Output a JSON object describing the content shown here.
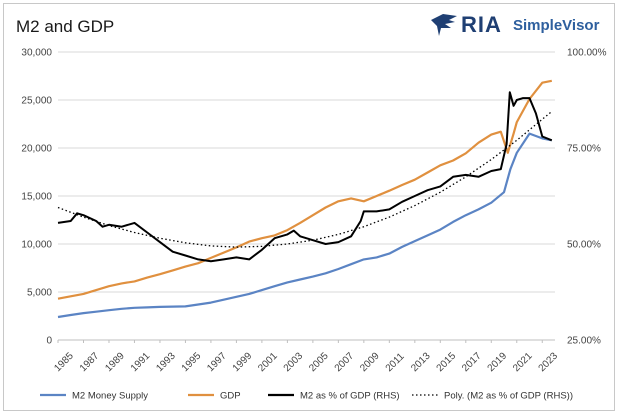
{
  "logo": {
    "brand": "RIA",
    "product": "SimpleVisor"
  },
  "colors": {
    "m2": "#5b84c4",
    "gdp": "#e0903f",
    "ratio": "#000000",
    "trend": "#000000"
  },
  "chart_data": {
    "type": "line",
    "title": "M2 and GDP",
    "x_ticks": [
      "1985",
      "1987",
      "1989",
      "1991",
      "1993",
      "1995",
      "1997",
      "1999",
      "2001",
      "2003",
      "2005",
      "2007",
      "2009",
      "2011",
      "2013",
      "2015",
      "2017",
      "2019",
      "2021",
      "2023"
    ],
    "xlim": [
      1985,
      2024
    ],
    "y_left": {
      "lim": [
        0,
        30000
      ],
      "ticks": [
        "0",
        "5,000",
        "10,000",
        "15,000",
        "20,000",
        "25,000",
        "30,000"
      ]
    },
    "y_right": {
      "lim": [
        0.25,
        1.0
      ],
      "ticks": [
        "25.00%",
        "50.00%",
        "75.00%",
        "100.00%"
      ]
    },
    "legend_position": "bottom",
    "grid": true,
    "series": [
      {
        "name": "M2 Money Supply",
        "axis": "left",
        "style": "solid",
        "x": [
          1985,
          1986,
          1987,
          1988,
          1989,
          1990,
          1991,
          1992,
          1993,
          1994,
          1995,
          1996,
          1997,
          1998,
          1999,
          2000,
          2001,
          2002,
          2003,
          2004,
          2005,
          2006,
          2007,
          2008,
          2009,
          2010,
          2011,
          2012,
          2013,
          2014,
          2015,
          2016,
          2017,
          2018,
          2019,
          2020,
          2020.5,
          2021,
          2022,
          2023,
          2023.75
        ],
        "y": [
          2400,
          2600,
          2800,
          2950,
          3100,
          3250,
          3350,
          3400,
          3450,
          3480,
          3500,
          3700,
          3900,
          4200,
          4500,
          4800,
          5200,
          5600,
          6000,
          6300,
          6600,
          6950,
          7400,
          7900,
          8400,
          8600,
          9000,
          9700,
          10300,
          10900,
          11500,
          12300,
          13000,
          13600,
          14300,
          15400,
          17800,
          19500,
          21500,
          21000,
          20800
        ]
      },
      {
        "name": "GDP",
        "axis": "left",
        "style": "solid",
        "x": [
          1985,
          1986,
          1987,
          1988,
          1989,
          1990,
          1991,
          1992,
          1993,
          1994,
          1995,
          1996,
          1997,
          1998,
          1999,
          2000,
          2001,
          2002,
          2003,
          2004,
          2005,
          2006,
          2007,
          2008,
          2009,
          2010,
          2011,
          2012,
          2013,
          2014,
          2015,
          2016,
          2017,
          2018,
          2019,
          2019.75,
          2020.3,
          2020.75,
          2021,
          2022,
          2023,
          2023.75
        ],
        "y": [
          4300,
          4550,
          4800,
          5200,
          5600,
          5900,
          6100,
          6500,
          6850,
          7250,
          7650,
          8000,
          8550,
          9100,
          9650,
          10250,
          10600,
          10900,
          11450,
          12200,
          13000,
          13800,
          14450,
          14750,
          14450,
          15000,
          15550,
          16150,
          16700,
          17450,
          18200,
          18700,
          19450,
          20550,
          21400,
          21700,
          19500,
          21500,
          22700,
          25100,
          26800,
          27000
        ]
      },
      {
        "name": "M2 as % of GDP (RHS)",
        "axis": "right",
        "style": "solid",
        "x": [
          1985,
          1986,
          1986.5,
          1987,
          1988,
          1988.5,
          1989,
          1990,
          1991,
          1992,
          1993,
          1994,
          1995,
          1996,
          1997,
          1998,
          1999,
          2000,
          2001,
          2002,
          2003,
          2003.5,
          2004,
          2005,
          2006,
          2007,
          2008,
          2008.75,
          2009,
          2010,
          2011,
          2012,
          2013,
          2014,
          2015,
          2016,
          2017,
          2018,
          2019,
          2019.75,
          2020.2,
          2020.45,
          2020.75,
          2021,
          2021.5,
          2022,
          2022.5,
          2023,
          2023.75
        ],
        "y": [
          0.555,
          0.56,
          0.58,
          0.575,
          0.56,
          0.545,
          0.55,
          0.545,
          0.555,
          0.53,
          0.505,
          0.48,
          0.47,
          0.46,
          0.455,
          0.46,
          0.465,
          0.46,
          0.485,
          0.515,
          0.525,
          0.535,
          0.52,
          0.51,
          0.5,
          0.505,
          0.52,
          0.56,
          0.585,
          0.585,
          0.59,
          0.61,
          0.625,
          0.64,
          0.65,
          0.675,
          0.68,
          0.675,
          0.69,
          0.695,
          0.76,
          0.895,
          0.86,
          0.875,
          0.88,
          0.88,
          0.84,
          0.78,
          0.77
        ]
      },
      {
        "name": "Poly. (M2 as % of GDP (RHS))",
        "axis": "right",
        "style": "dotted",
        "x": [
          1985,
          1987,
          1989,
          1991,
          1993,
          1995,
          1997,
          1999,
          2001,
          2003,
          2005,
          2007,
          2009,
          2011,
          2013,
          2015,
          2017,
          2019,
          2021,
          2023,
          2023.75
        ],
        "y": [
          0.595,
          0.57,
          0.548,
          0.53,
          0.515,
          0.503,
          0.495,
          0.492,
          0.494,
          0.5,
          0.51,
          0.525,
          0.545,
          0.57,
          0.6,
          0.635,
          0.675,
          0.72,
          0.77,
          0.825,
          0.845
        ]
      }
    ]
  }
}
